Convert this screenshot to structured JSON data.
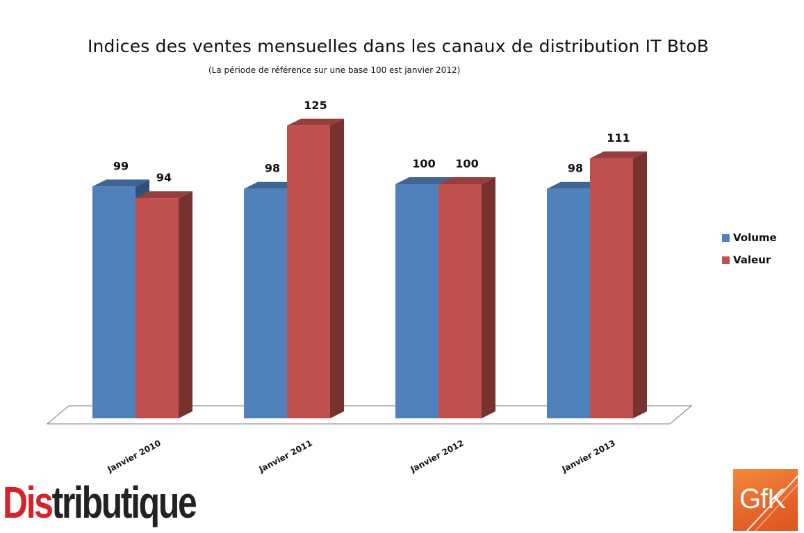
{
  "chart_data": {
    "type": "bar",
    "title": "Indices des ventes mensuelles dans les canaux de distribution IT BtoB",
    "subtitle": "(La période de référence sur une base 100 est janvier 2012)",
    "categories": [
      "Janvier 2010",
      "Janvier 2011",
      "Janvier 2012",
      "Janvier 2013"
    ],
    "series": [
      {
        "name": "Volume",
        "values": [
          99,
          98,
          100,
          98
        ],
        "color": "#4f81bd"
      },
      {
        "name": "Valeur",
        "values": [
          94,
          125,
          100,
          111
        ],
        "color": "#c0504d"
      }
    ],
    "ylim": [
      0,
      130
    ],
    "grid": false,
    "legend": "right",
    "style": "3d-column",
    "data_labels": true
  },
  "logos": {
    "distributique": {
      "part1": "Dis",
      "part2": "tributique"
    },
    "gfk": "GfK"
  }
}
